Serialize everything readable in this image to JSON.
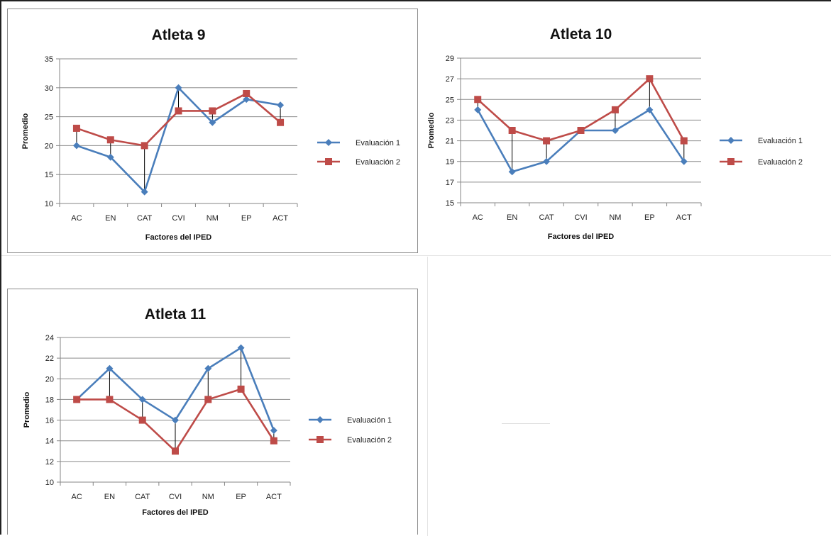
{
  "chart_data": [
    {
      "type": "line",
      "title": "Atleta 9",
      "xlabel": "Factores del IPED",
      "ylabel": "Promedio",
      "categories": [
        "AC",
        "EN",
        "CAT",
        "CVI",
        "NM",
        "EP",
        "ACT"
      ],
      "ylim": [
        10,
        35
      ],
      "yticks": [
        10,
        15,
        20,
        25,
        30,
        35
      ],
      "grid": true,
      "drop_lines": true,
      "legend_position": "right",
      "series": [
        {
          "name": "Evaluación 1",
          "color": "#4a7ebb",
          "marker": "diamond",
          "values": [
            20,
            18,
            12,
            30,
            24,
            28,
            27
          ]
        },
        {
          "name": "Evaluación 2",
          "color": "#be4b48",
          "marker": "square",
          "values": [
            23,
            21,
            20,
            26,
            26,
            29,
            24
          ]
        }
      ]
    },
    {
      "type": "line",
      "title": "Atleta 10",
      "xlabel": "Factores del IPED",
      "ylabel": "Promedio",
      "categories": [
        "AC",
        "EN",
        "CAT",
        "CVI",
        "NM",
        "EP",
        "ACT"
      ],
      "ylim": [
        15,
        29
      ],
      "yticks": [
        15,
        17,
        19,
        21,
        23,
        25,
        27,
        29
      ],
      "grid": true,
      "drop_lines": true,
      "legend_position": "right",
      "series": [
        {
          "name": "Evaluación 1",
          "color": "#4a7ebb",
          "marker": "diamond",
          "values": [
            24,
            18,
            19,
            22,
            22,
            24,
            19
          ]
        },
        {
          "name": "Evaluación 2",
          "color": "#be4b48",
          "marker": "square",
          "values": [
            25,
            22,
            21,
            22,
            24,
            27,
            21
          ]
        }
      ]
    },
    {
      "type": "line",
      "title": "Atleta 11",
      "xlabel": "Factores del IPED",
      "ylabel": "Promedio",
      "categories": [
        "AC",
        "EN",
        "CAT",
        "CVI",
        "NM",
        "EP",
        "ACT"
      ],
      "ylim": [
        10,
        24
      ],
      "yticks": [
        10,
        12,
        14,
        16,
        18,
        20,
        22,
        24
      ],
      "grid": true,
      "drop_lines": true,
      "legend_position": "right",
      "series": [
        {
          "name": "Evaluación 1",
          "color": "#4a7ebb",
          "marker": "diamond",
          "values": [
            18,
            21,
            18,
            16,
            21,
            23,
            15
          ]
        },
        {
          "name": "Evaluación 2",
          "color": "#be4b48",
          "marker": "square",
          "values": [
            18,
            18,
            16,
            13,
            18,
            19,
            14
          ]
        }
      ]
    }
  ]
}
